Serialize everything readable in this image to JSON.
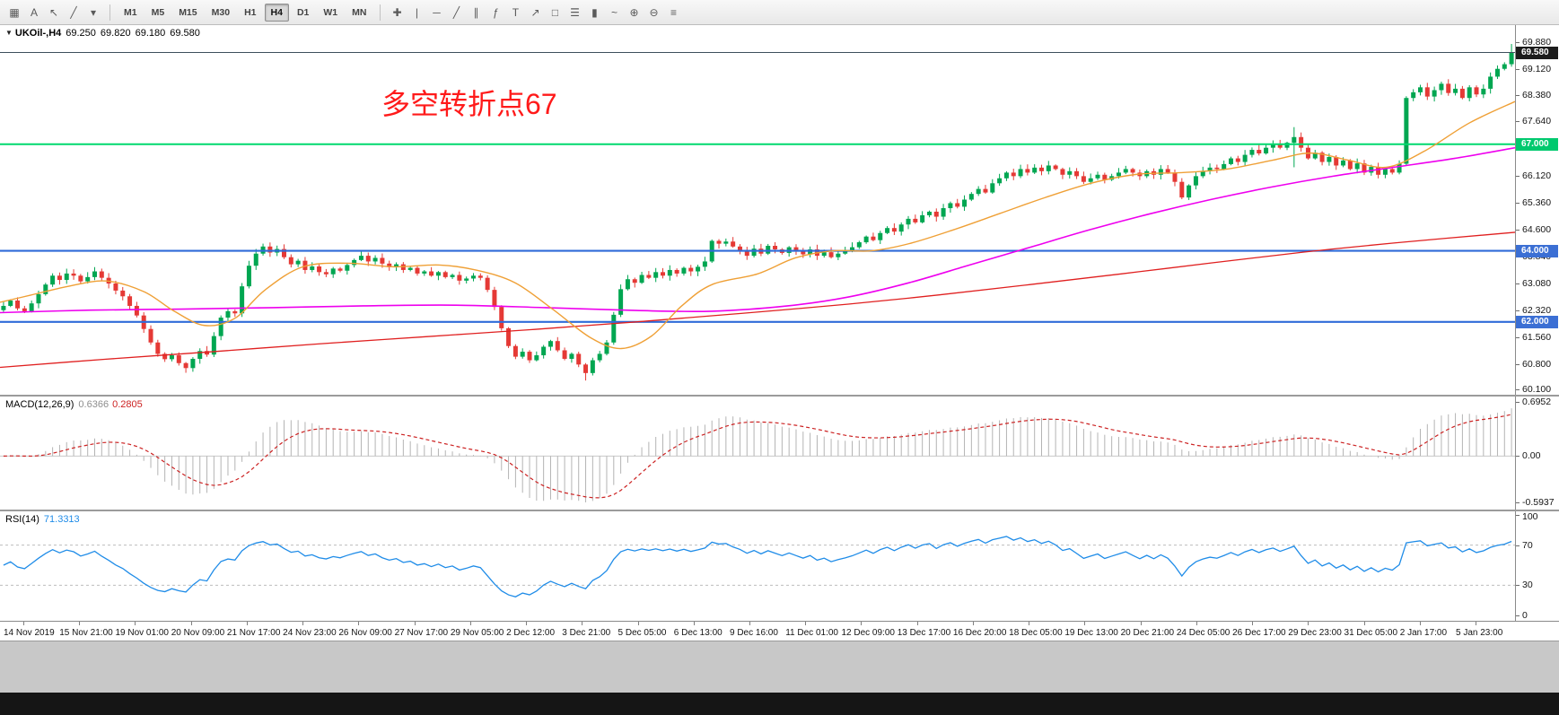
{
  "toolbar": {
    "left_tools": [
      {
        "name": "snap-grid",
        "glyph": "▦"
      },
      {
        "name": "text-annotation",
        "glyph": "A"
      },
      {
        "name": "cursor",
        "glyph": "↖"
      },
      {
        "name": "pen",
        "glyph": "╱"
      },
      {
        "name": "pen-options-caret",
        "glyph": "▾"
      }
    ],
    "timeframes": [
      {
        "label": "M1",
        "active": false
      },
      {
        "label": "M5",
        "active": false
      },
      {
        "label": "M15",
        "active": false
      },
      {
        "label": "M30",
        "active": false
      },
      {
        "label": "H1",
        "active": false
      },
      {
        "label": "H4",
        "active": true
      },
      {
        "label": "D1",
        "active": false
      },
      {
        "label": "W1",
        "active": false
      },
      {
        "label": "MN",
        "active": false
      }
    ],
    "chart_tools": [
      {
        "name": "crosshair",
        "glyph": "✚"
      },
      {
        "name": "vertical-line",
        "glyph": "|"
      },
      {
        "name": "horizontal-line",
        "glyph": "─"
      },
      {
        "name": "trend-line",
        "glyph": "╱"
      },
      {
        "name": "equidistant-channel",
        "glyph": "∥"
      },
      {
        "name": "fibonacci-retracement",
        "glyph": "ƒ"
      },
      {
        "name": "text-tool",
        "glyph": "T"
      },
      {
        "name": "arrow-tool",
        "glyph": "↗"
      },
      {
        "name": "shapes-tool",
        "glyph": "□"
      },
      {
        "name": "bar-chart-mode",
        "glyph": "☰"
      },
      {
        "name": "candlestick-mode",
        "glyph": "▮"
      },
      {
        "name": "line-chart-mode",
        "glyph": "~"
      },
      {
        "name": "zoom-in",
        "glyph": "⊕"
      },
      {
        "name": "zoom-out",
        "glyph": "⊖"
      },
      {
        "name": "indicators-list",
        "glyph": "≡"
      }
    ]
  },
  "chart": {
    "collapse_arrow": "▼",
    "symbol_label": "UKOil-,H4",
    "quote": {
      "open": "69.250",
      "high": "69.820",
      "low": "69.180",
      "close": "69.580"
    },
    "annotation": {
      "text": "多空转折点67",
      "color": "#ff1a1a"
    },
    "levels": [
      {
        "price": 67.0,
        "color": "#00d96e",
        "width": 2,
        "name": "horizontal-level-67"
      },
      {
        "price": 64.0,
        "color": "#2f6bd8",
        "width": 2.2,
        "name": "horizontal-level-64"
      },
      {
        "price": 62.0,
        "color": "#2f6bd8",
        "width": 2.2,
        "name": "horizontal-level-62"
      }
    ],
    "bid_line": {
      "price": 69.58,
      "color": "#3d4f5c"
    }
  },
  "price_axis": {
    "labels": [
      "69.880",
      "69.120",
      "68.380",
      "67.640",
      "66.880",
      "66.120",
      "65.360",
      "64.600",
      "63.840",
      "63.080",
      "62.320",
      "61.560",
      "60.800",
      "60.100"
    ],
    "badges": [
      {
        "text": "69.580",
        "value": 69.58,
        "bg": "#1c1c1c",
        "fg": "#ffffff",
        "name": "bid-price-badge"
      },
      {
        "text": "67.000",
        "value": 67.0,
        "bg": "#00c96e",
        "fg": "#ffffff",
        "name": "level-67-badge"
      },
      {
        "text": "64.000",
        "value": 64.0,
        "bg": "#3b6fd4",
        "fg": "#ffffff",
        "name": "level-64-badge"
      },
      {
        "text": "62.000",
        "value": 62.0,
        "bg": "#3b6fd4",
        "fg": "#ffffff",
        "name": "level-62-badge"
      }
    ]
  },
  "macd_panel": {
    "title": "MACD(12,26,9)",
    "main_value": "0.6366",
    "signal_value": "0.2805",
    "axis": [
      "0.6952",
      "0.00",
      "-0.5937"
    ]
  },
  "rsi_panel": {
    "title": "RSI(14)",
    "value": "71.3313",
    "axis": [
      "100",
      "70",
      "30",
      "0"
    ],
    "level_high": 70,
    "level_low": 30
  },
  "time_axis": {
    "labels": [
      "14 Nov 2019",
      "15 Nov 21:00",
      "19 Nov 01:00",
      "20 Nov 09:00",
      "21 Nov 17:00",
      "24 Nov 23:00",
      "26 Nov 09:00",
      "27 Nov 17:00",
      "29 Nov 05:00",
      "2 Dec 12:00",
      "3 Dec 21:00",
      "5 Dec 05:00",
      "6 Dec 13:00",
      "9 Dec 16:00",
      "11 Dec 01:00",
      "12 Dec 09:00",
      "13 Dec 17:00",
      "16 Dec 20:00",
      "18 Dec 05:00",
      "19 Dec 13:00",
      "20 Dec 21:00",
      "24 Dec 05:00",
      "26 Dec 17:00",
      "29 Dec 23:00",
      "31 Dec 05:00",
      "2 Jan 17:00",
      "5 Jan 23:00"
    ]
  },
  "colors": {
    "candle_up": "#00a651",
    "candle_down": "#e53935",
    "ma_fast_orange": "#efa036",
    "ma_mid_magenta": "#ee00ee",
    "ma_slow_red": "#e02020",
    "macd_histogram": "#b4b4b4",
    "macd_signal": "#cc2222",
    "rsi_line": "#1f8ce8"
  },
  "chart_data": {
    "type": "candlestick",
    "symbol": "UKOil-",
    "timeframe": "H4",
    "price_range_visible": [
      60.1,
      69.88
    ],
    "closes": [
      62.45,
      62.6,
      62.38,
      62.3,
      62.52,
      62.78,
      63.05,
      63.3,
      63.18,
      63.36,
      63.3,
      63.14,
      63.26,
      63.42,
      63.24,
      63.08,
      62.88,
      62.72,
      62.45,
      62.18,
      61.8,
      61.42,
      61.1,
      60.95,
      61.06,
      60.84,
      60.7,
      60.96,
      61.18,
      61.08,
      61.6,
      62.12,
      62.3,
      62.24,
      63.0,
      63.58,
      63.92,
      64.12,
      63.95,
      64.05,
      63.82,
      63.62,
      63.72,
      63.46,
      63.56,
      63.4,
      63.34,
      63.5,
      63.44,
      63.6,
      63.74,
      63.86,
      63.7,
      63.8,
      63.64,
      63.54,
      63.62,
      63.46,
      63.52,
      63.36,
      63.42,
      63.3,
      63.4,
      63.26,
      63.32,
      63.16,
      63.22,
      63.3,
      63.24,
      62.9,
      62.42,
      61.82,
      61.32,
      61.02,
      61.16,
      60.92,
      61.06,
      61.3,
      61.46,
      61.2,
      60.96,
      61.1,
      60.8,
      60.56,
      60.92,
      61.1,
      61.42,
      62.2,
      62.92,
      63.2,
      63.1,
      63.32,
      63.24,
      63.4,
      63.3,
      63.46,
      63.36,
      63.52,
      63.42,
      63.55,
      63.7,
      64.28,
      64.2,
      64.26,
      64.12,
      64.02,
      63.86,
      64.06,
      63.92,
      64.14,
      64.04,
      63.94,
      64.1,
      64.0,
      63.9,
      64.04,
      63.86,
      63.96,
      63.82,
      63.92,
      64.0,
      64.1,
      64.24,
      64.4,
      64.3,
      64.5,
      64.64,
      64.54,
      64.74,
      64.9,
      64.8,
      65.0,
      65.1,
      64.96,
      65.2,
      65.34,
      65.24,
      65.44,
      65.6,
      65.74,
      65.64,
      65.9,
      66.04,
      66.2,
      66.1,
      66.3,
      66.2,
      66.34,
      66.24,
      66.4,
      66.3,
      66.14,
      66.24,
      66.1,
      65.94,
      66.04,
      66.14,
      66.0,
      66.1,
      66.2,
      66.3,
      66.2,
      66.1,
      66.24,
      66.14,
      66.3,
      66.2,
      65.94,
      65.5,
      65.84,
      66.1,
      66.24,
      66.34,
      66.3,
      66.44,
      66.6,
      66.5,
      66.7,
      66.84,
      66.74,
      66.9,
      67.0,
      66.9,
      67.04,
      67.2,
      66.9,
      66.6,
      66.76,
      66.5,
      66.64,
      66.4,
      66.54,
      66.3,
      66.46,
      66.2,
      66.36,
      66.14,
      66.3,
      66.2,
      66.45,
      68.3,
      68.46,
      68.6,
      68.34,
      68.52,
      68.7,
      68.44,
      68.56,
      68.3,
      68.6,
      68.4,
      68.56,
      68.9,
      69.12,
      69.25,
      69.58
    ],
    "overrides": {
      "83": {
        "low": 60.35
      },
      "184": {
        "high": 67.48,
        "low": 66.35
      },
      "215": {
        "open": 69.25,
        "high": 69.82,
        "low": 69.18,
        "close": 69.58
      }
    },
    "ma_red": [
      [
        0,
        60.72
      ],
      [
        0.07,
        60.95
      ],
      [
        0.14,
        61.16
      ],
      [
        0.21,
        61.38
      ],
      [
        0.28,
        61.58
      ],
      [
        0.35,
        61.78
      ],
      [
        0.42,
        62.0
      ],
      [
        0.49,
        62.24
      ],
      [
        0.56,
        62.5
      ],
      [
        0.62,
        62.76
      ],
      [
        0.68,
        63.05
      ],
      [
        0.74,
        63.35
      ],
      [
        0.8,
        63.66
      ],
      [
        0.86,
        63.96
      ],
      [
        0.92,
        64.22
      ],
      [
        1,
        64.52
      ]
    ],
    "ma_magenta": [
      [
        0,
        62.26
      ],
      [
        0.06,
        62.33
      ],
      [
        0.12,
        62.36
      ],
      [
        0.18,
        62.4
      ],
      [
        0.24,
        62.45
      ],
      [
        0.3,
        62.47
      ],
      [
        0.36,
        62.4
      ],
      [
        0.42,
        62.32
      ],
      [
        0.47,
        62.3
      ],
      [
        0.52,
        62.45
      ],
      [
        0.56,
        62.7
      ],
      [
        0.6,
        63.1
      ],
      [
        0.64,
        63.6
      ],
      [
        0.68,
        64.1
      ],
      [
        0.72,
        64.6
      ],
      [
        0.76,
        65.05
      ],
      [
        0.8,
        65.45
      ],
      [
        0.84,
        65.8
      ],
      [
        0.88,
        66.1
      ],
      [
        0.92,
        66.35
      ],
      [
        0.96,
        66.6
      ],
      [
        1,
        66.9
      ]
    ],
    "ma_orange": [
      [
        0,
        62.55
      ],
      [
        0.02,
        62.75
      ],
      [
        0.045,
        63.0
      ],
      [
        0.07,
        63.15
      ],
      [
        0.095,
        62.85
      ],
      [
        0.115,
        62.3
      ],
      [
        0.135,
        61.9
      ],
      [
        0.155,
        62.1
      ],
      [
        0.175,
        62.9
      ],
      [
        0.2,
        63.55
      ],
      [
        0.23,
        63.65
      ],
      [
        0.26,
        63.55
      ],
      [
        0.29,
        63.6
      ],
      [
        0.315,
        63.45
      ],
      [
        0.34,
        63.1
      ],
      [
        0.365,
        62.35
      ],
      [
        0.39,
        61.55
      ],
      [
        0.41,
        61.25
      ],
      [
        0.43,
        61.6
      ],
      [
        0.45,
        62.45
      ],
      [
        0.47,
        63.05
      ],
      [
        0.5,
        63.35
      ],
      [
        0.525,
        63.8
      ],
      [
        0.55,
        64.0
      ],
      [
        0.575,
        64.0
      ],
      [
        0.6,
        64.2
      ],
      [
        0.63,
        64.6
      ],
      [
        0.66,
        65.05
      ],
      [
        0.69,
        65.5
      ],
      [
        0.72,
        65.9
      ],
      [
        0.75,
        66.15
      ],
      [
        0.78,
        66.2
      ],
      [
        0.81,
        66.3
      ],
      [
        0.84,
        66.55
      ],
      [
        0.865,
        66.75
      ],
      [
        0.89,
        66.55
      ],
      [
        0.915,
        66.35
      ],
      [
        0.94,
        66.8
      ],
      [
        0.97,
        67.6
      ],
      [
        1,
        68.2
      ]
    ]
  }
}
